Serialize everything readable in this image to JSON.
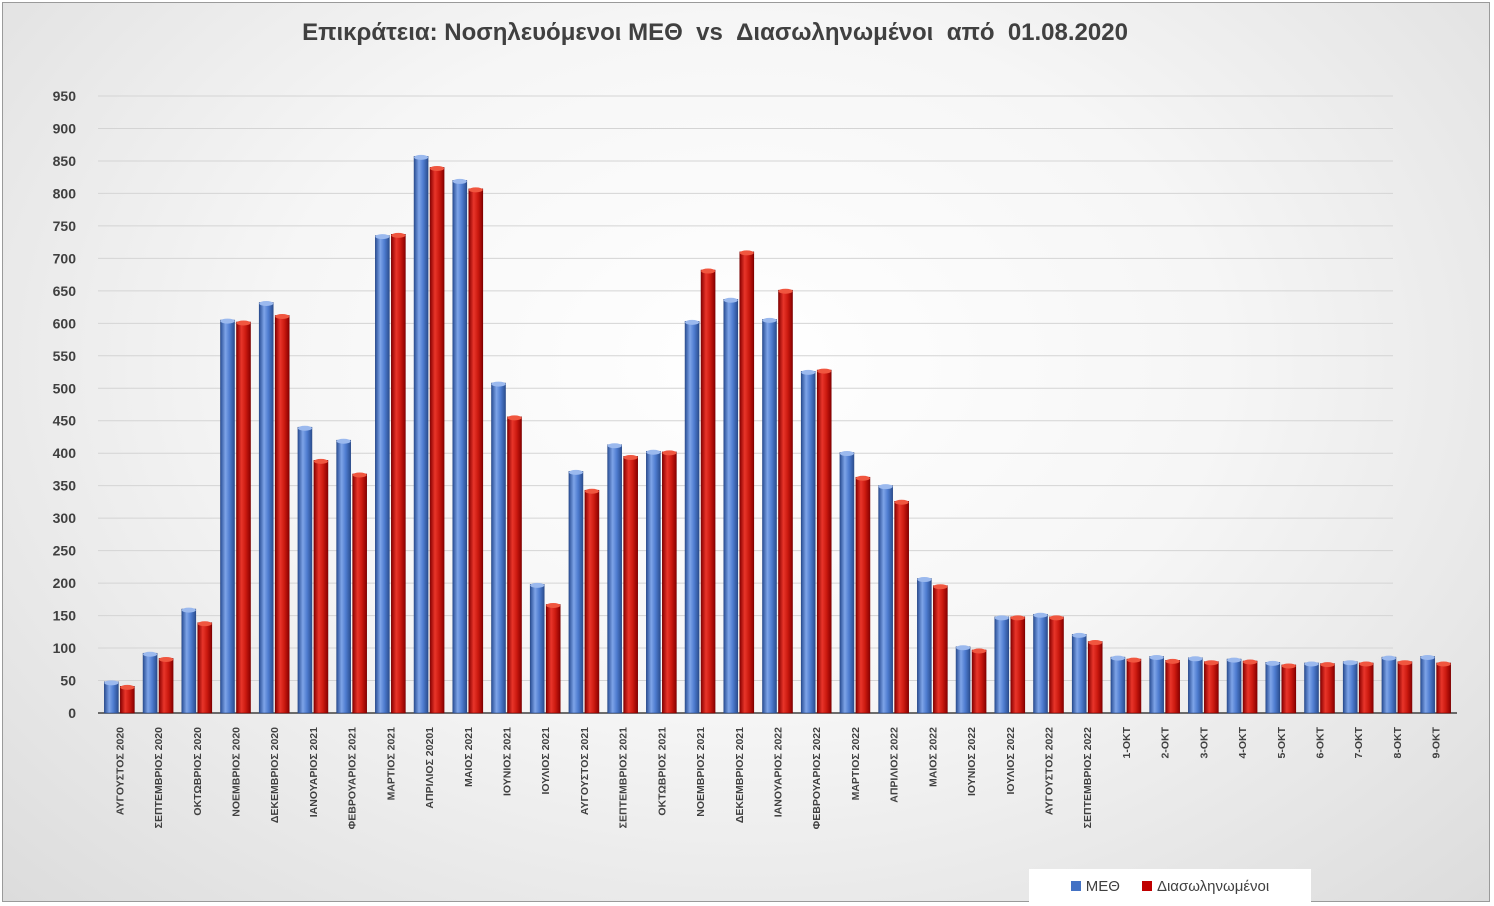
{
  "chart_data": {
    "type": "bar",
    "title": "Επικράτεια: Νοσηλευόμενοι ΜΕΘ  vs  Διασωληνωμένοι  από  01.08.2020",
    "xlabel": "",
    "ylabel": "",
    "ylim": [
      0,
      950
    ],
    "ytick_step": 50,
    "grid": true,
    "legend_position": "bottom-right",
    "categories": [
      "ΑΥΓΟΥΣΤΟΣ 2020",
      "ΣΕΠΤΕΜΒΡΙΟΣ 2020",
      "ΟΚΤΩΒΡΙΟΣ 2020",
      "ΝΟΕΜΒΡΙΟΣ 2020",
      "ΔΕΚΕΜΒΡΙΟΣ 2020",
      "ΙΑΝΟΥΑΡΙΟΣ 2021",
      "ΦΕΒΡΟΥΑΡΙΟΣ 2021",
      "ΜΑΡΤΙΟΣ 2021",
      "ΑΠΡΙΛΙΟΣ 20201",
      "ΜΑΙΟΣ 2021",
      "ΙΟΥΝΙΟΣ 2021",
      "ΙΟΥΛΙΟΣ 2021",
      "ΑΥΓΟΥΣΤΟΣ 2021",
      "ΣΕΠΤΕΜΒΡΙΟΣ 2021",
      "ΟΚΤΩΒΡΙΟΣ 2021",
      "ΝΟΕΜΒΡΙΟΣ 2021",
      "ΔΕΚΕΜΒΡΙΟΣ 2021",
      "ΙΑΝΟΥΑΡΙΟΣ 2022",
      "ΦΕΒΡΟΥΑΡΙΟΣ 2022",
      "ΜΑΡΤΙΟΣ 2022",
      "ΑΠΡΙΛΙΟΣ 2022",
      "ΜΑΙΟΣ 2022",
      "ΙΟΥΝΙΟΣ 2022",
      "ΙΟΥΛΙΟΣ 2022",
      "ΑΥΓΟΥΣΤΟΣ 2022",
      "ΣΕΠΤΕΜΒΡΙΟΣ 2022",
      "1-ΟΚΤ",
      "2-ΟΚΤ",
      "3-ΟΚΤ",
      "4-ΟΚΤ",
      "5-ΟΚΤ",
      "6-ΟΚΤ",
      "7-ΟΚΤ",
      "8-ΟΚΤ",
      "9-ΟΚΤ"
    ],
    "series": [
      {
        "name": "ΜΕΘ",
        "color": "#4472c4",
        "values": [
          48,
          92,
          160,
          605,
          632,
          440,
          420,
          735,
          857,
          820,
          508,
          198,
          372,
          413,
          403,
          603,
          637,
          606,
          526,
          401,
          350,
          207,
          102,
          148,
          152,
          121,
          86,
          87,
          85,
          83,
          78,
          77,
          79,
          86,
          87
        ]
      },
      {
        "name": "Διασωληνωμένοι",
        "color": "#c00000",
        "values": [
          41,
          84,
          139,
          602,
          612,
          389,
          368,
          737,
          840,
          807,
          456,
          167,
          343,
          395,
          402,
          682,
          710,
          651,
          528,
          363,
          326,
          196,
          97,
          148,
          148,
          110,
          83,
          81,
          79,
          80,
          74,
          76,
          77,
          79,
          77
        ]
      }
    ]
  }
}
